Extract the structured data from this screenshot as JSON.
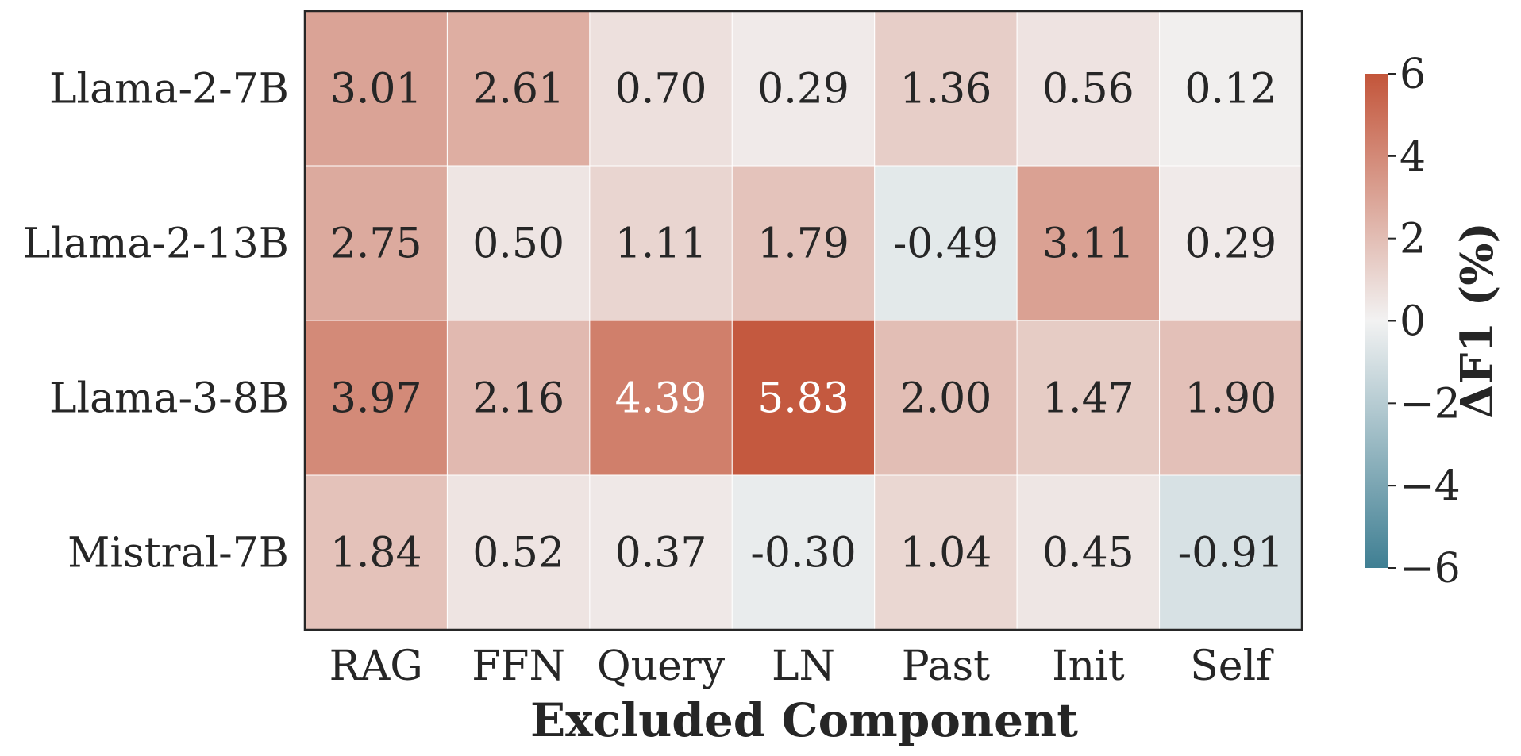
{
  "chart_data": {
    "type": "heatmap",
    "xlabel": "Excluded Component",
    "ylabel": "",
    "x_categories": [
      "RAG",
      "FFN",
      "Query",
      "LN",
      "Past",
      "Init",
      "Self"
    ],
    "y_categories": [
      "Llama-2-7B",
      "Llama-2-13B",
      "Llama-3-8B",
      "Mistral-7B"
    ],
    "values": [
      [
        3.01,
        2.61,
        0.7,
        0.29,
        1.36,
        0.56,
        0.12
      ],
      [
        2.75,
        0.5,
        1.11,
        1.79,
        -0.49,
        3.11,
        0.29
      ],
      [
        3.97,
        2.16,
        4.39,
        5.83,
        2.0,
        1.47,
        1.9
      ],
      [
        1.84,
        0.52,
        0.37,
        -0.3,
        1.04,
        0.45,
        -0.91
      ]
    ],
    "value_labels": [
      [
        "3.01",
        "2.61",
        "0.70",
        "0.29",
        "1.36",
        "0.56",
        "0.12"
      ],
      [
        "2.75",
        "0.50",
        "1.11",
        "1.79",
        "-0.49",
        "3.11",
        "0.29"
      ],
      [
        "3.97",
        "2.16",
        "4.39",
        "5.83",
        "2.00",
        "1.47",
        "1.90"
      ],
      [
        "1.84",
        "0.52",
        "0.37",
        "-0.30",
        "1.04",
        "0.45",
        "-0.91"
      ]
    ],
    "colorbar": {
      "label": "ΔF1 (%)",
      "range": [
        -6,
        6
      ],
      "ticks": [
        6,
        4,
        2,
        0,
        -2,
        -4,
        -6
      ],
      "tick_labels": [
        "6",
        "4",
        "2",
        "0",
        "−2",
        "−4",
        "−6"
      ],
      "low_color": "#3f7f93",
      "mid_color": "#f2f2f2",
      "high_color": "#c3553a"
    },
    "grid": false,
    "legend": "colorbar-right"
  }
}
